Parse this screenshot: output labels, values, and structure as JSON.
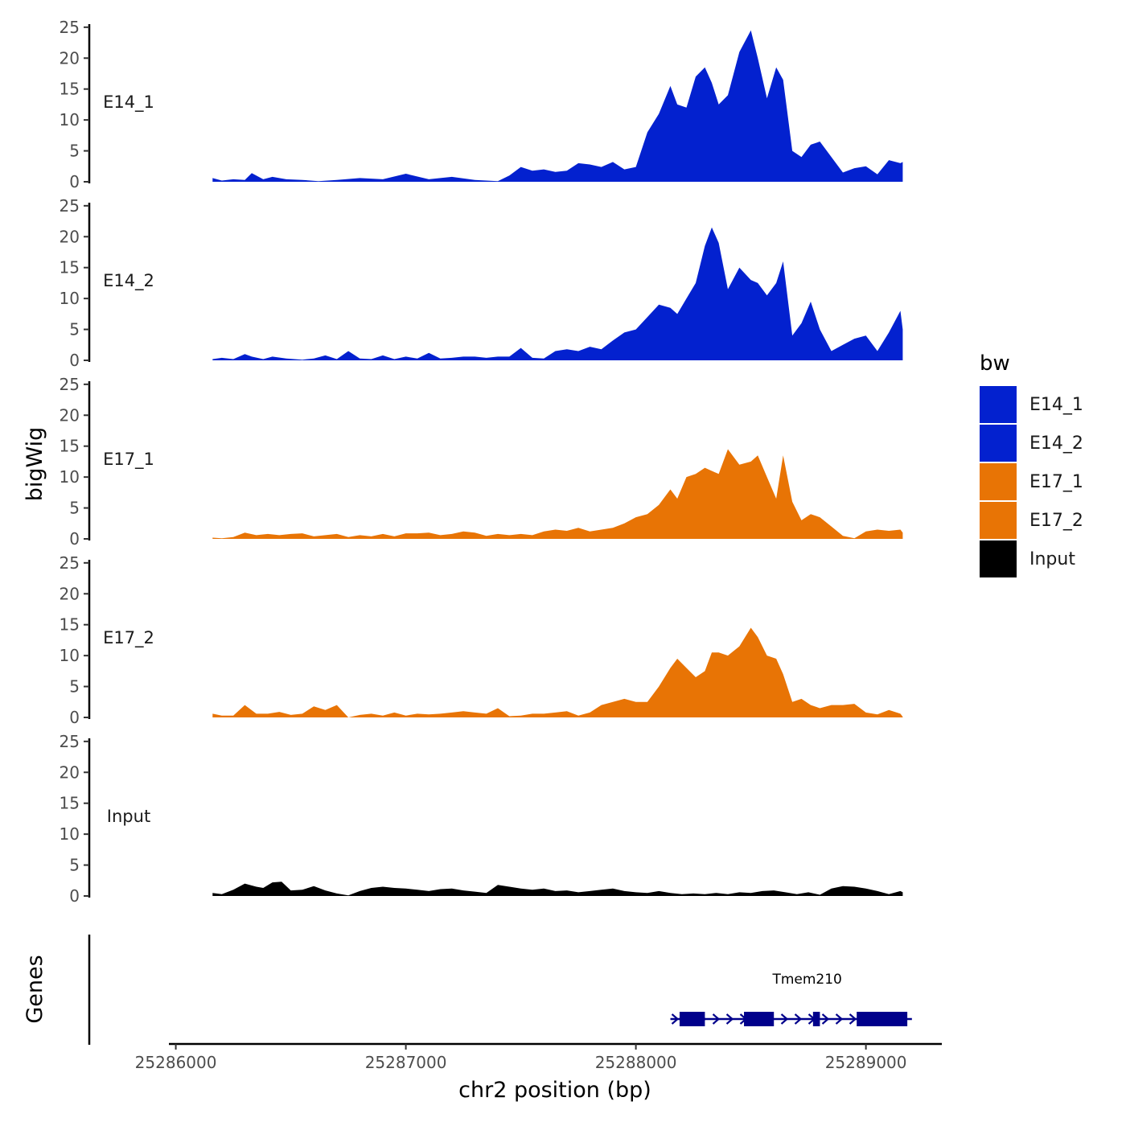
{
  "chart_data": {
    "type": "area",
    "ylabel": "bigWig",
    "genes_label": "Genes",
    "xlabel": "chr2 position (bp)",
    "xlim": [
      25285970,
      25289330
    ],
    "x_ticks": [
      25286000,
      25287000,
      25288000,
      25289000
    ],
    "x_tick_labels": [
      "25286000",
      "25287000",
      "25288000",
      "25289000"
    ],
    "ylim": [
      0,
      25.5
    ],
    "y_ticks": [
      0,
      5,
      10,
      15,
      20,
      25
    ],
    "y_tick_labels": [
      "0",
      "5",
      "10",
      "15",
      "20",
      "25"
    ],
    "legend": {
      "title": "bw",
      "position": "right",
      "items": [
        {
          "label": "E14_1",
          "color": "#0321CF"
        },
        {
          "label": "E14_2",
          "color": "#0321CF"
        },
        {
          "label": "E17_1",
          "color": "#E87405"
        },
        {
          "label": "E17_2",
          "color": "#E87405"
        },
        {
          "label": "Input",
          "color": "#000000"
        }
      ]
    },
    "series": [
      {
        "name": "E14_1",
        "color": "#0321CF",
        "x": [
          25286160,
          25286200,
          25286250,
          25286300,
          25286330,
          25286380,
          25286420,
          25286480,
          25286550,
          25286620,
          25286700,
          25286800,
          25286900,
          25287000,
          25287100,
          25287200,
          25287300,
          25287400,
          25287450,
          25287500,
          25287550,
          25287600,
          25287650,
          25287700,
          25287750,
          25287800,
          25287850,
          25287900,
          25287950,
          25288000,
          25288050,
          25288100,
          25288150,
          25288180,
          25288220,
          25288260,
          25288300,
          25288330,
          25288360,
          25288400,
          25288450,
          25288500,
          25288530,
          25288570,
          25288610,
          25288640,
          25288680,
          25288720,
          25288760,
          25288800,
          25288850,
          25288900,
          25288950,
          25289000,
          25289050,
          25289100,
          25289150,
          25289160
        ],
        "y": [
          0.6,
          0.2,
          0.4,
          0.3,
          1.4,
          0.4,
          0.8,
          0.4,
          0.3,
          0.1,
          0.3,
          0.6,
          0.4,
          1.3,
          0.4,
          0.8,
          0.3,
          0.1,
          1.0,
          2.4,
          1.8,
          2.0,
          1.6,
          1.8,
          3.0,
          2.8,
          2.4,
          3.2,
          2.0,
          2.4,
          8.0,
          11.0,
          15.5,
          12.5,
          12.0,
          17.0,
          18.5,
          16.0,
          12.5,
          14.0,
          21.0,
          24.5,
          20.0,
          13.5,
          18.5,
          16.5,
          5.0,
          4.0,
          6.0,
          6.5,
          4.0,
          1.5,
          2.2,
          2.5,
          1.2,
          3.5,
          3.0,
          3.2
        ]
      },
      {
        "name": "E14_2",
        "color": "#0321CF",
        "x": [
          25286160,
          25286200,
          25286250,
          25286300,
          25286330,
          25286380,
          25286420,
          25286480,
          25286550,
          25286600,
          25286650,
          25286700,
          25286750,
          25286800,
          25286850,
          25286900,
          25286950,
          25287000,
          25287050,
          25287100,
          25287150,
          25287200,
          25287250,
          25287300,
          25287350,
          25287400,
          25287450,
          25287500,
          25287550,
          25287600,
          25287650,
          25287700,
          25287750,
          25287800,
          25287850,
          25287900,
          25287950,
          25288000,
          25288050,
          25288100,
          25288150,
          25288180,
          25288220,
          25288260,
          25288300,
          25288330,
          25288360,
          25288400,
          25288450,
          25288500,
          25288530,
          25288570,
          25288610,
          25288640,
          25288680,
          25288720,
          25288760,
          25288800,
          25288850,
          25288900,
          25288950,
          25289000,
          25289050,
          25289100,
          25289150,
          25289160
        ],
        "y": [
          0.2,
          0.4,
          0.2,
          1.0,
          0.6,
          0.2,
          0.6,
          0.3,
          0.1,
          0.3,
          0.8,
          0.2,
          1.5,
          0.3,
          0.2,
          0.8,
          0.2,
          0.6,
          0.3,
          1.2,
          0.3,
          0.4,
          0.6,
          0.6,
          0.4,
          0.6,
          0.6,
          2.0,
          0.4,
          0.3,
          1.5,
          1.8,
          1.5,
          2.2,
          1.8,
          3.2,
          4.5,
          5.0,
          7.0,
          9.0,
          8.5,
          7.5,
          10.0,
          12.5,
          18.5,
          21.5,
          19.0,
          11.5,
          15.0,
          13.0,
          12.5,
          10.5,
          12.5,
          16.0,
          4.0,
          6.0,
          9.5,
          5.0,
          1.5,
          2.5,
          3.5,
          4.0,
          1.5,
          4.5,
          8.0,
          5.0
        ]
      },
      {
        "name": "E17_1",
        "color": "#E87405",
        "x": [
          25286160,
          25286200,
          25286250,
          25286300,
          25286350,
          25286400,
          25286450,
          25286500,
          25286550,
          25286600,
          25286650,
          25286700,
          25286750,
          25286800,
          25286850,
          25286900,
          25286950,
          25287000,
          25287050,
          25287100,
          25287150,
          25287200,
          25287250,
          25287300,
          25287350,
          25287400,
          25287450,
          25287500,
          25287550,
          25287600,
          25287650,
          25287700,
          25287750,
          25287800,
          25287850,
          25287900,
          25287950,
          25288000,
          25288050,
          25288100,
          25288150,
          25288180,
          25288220,
          25288260,
          25288300,
          25288330,
          25288360,
          25288400,
          25288450,
          25288500,
          25288530,
          25288570,
          25288610,
          25288640,
          25288680,
          25288720,
          25288760,
          25288800,
          25288850,
          25288900,
          25288950,
          25289000,
          25289050,
          25289100,
          25289150,
          25289160
        ],
        "y": [
          0.2,
          0.1,
          0.3,
          1.0,
          0.6,
          0.8,
          0.6,
          0.8,
          0.9,
          0.4,
          0.6,
          0.8,
          0.3,
          0.6,
          0.4,
          0.8,
          0.4,
          0.9,
          0.9,
          1.0,
          0.6,
          0.8,
          1.2,
          1.0,
          0.5,
          0.8,
          0.6,
          0.8,
          0.6,
          1.2,
          1.5,
          1.3,
          1.8,
          1.2,
          1.5,
          1.8,
          2.5,
          3.5,
          4.0,
          5.5,
          8.0,
          6.5,
          10.0,
          10.5,
          11.5,
          11.0,
          10.5,
          14.5,
          12.0,
          12.5,
          13.5,
          10.0,
          6.5,
          13.5,
          6.0,
          3.0,
          4.0,
          3.5,
          2.0,
          0.5,
          0.1,
          1.2,
          1.5,
          1.3,
          1.5,
          1.0
        ]
      },
      {
        "name": "E17_2",
        "color": "#E87405",
        "x": [
          25286160,
          25286200,
          25286250,
          25286300,
          25286350,
          25286400,
          25286450,
          25286500,
          25286550,
          25286600,
          25286650,
          25286700,
          25286750,
          25286800,
          25286850,
          25286900,
          25286950,
          25287000,
          25287050,
          25287100,
          25287150,
          25287200,
          25287250,
          25287300,
          25287350,
          25287400,
          25287450,
          25287500,
          25287550,
          25287600,
          25287650,
          25287700,
          25287750,
          25287800,
          25287850,
          25287900,
          25287950,
          25288000,
          25288050,
          25288100,
          25288150,
          25288180,
          25288220,
          25288260,
          25288300,
          25288330,
          25288360,
          25288400,
          25288450,
          25288500,
          25288530,
          25288570,
          25288610,
          25288640,
          25288680,
          25288720,
          25288760,
          25288800,
          25288850,
          25288900,
          25288950,
          25289000,
          25289050,
          25289100,
          25289150,
          25289160
        ],
        "y": [
          0.6,
          0.3,
          0.3,
          2.0,
          0.6,
          0.6,
          0.9,
          0.4,
          0.6,
          1.8,
          1.2,
          2.0,
          0.0,
          0.4,
          0.6,
          0.3,
          0.8,
          0.3,
          0.6,
          0.5,
          0.6,
          0.8,
          1.0,
          0.8,
          0.6,
          1.5,
          0.2,
          0.3,
          0.6,
          0.6,
          0.8,
          1.0,
          0.3,
          0.8,
          2.0,
          2.5,
          3.0,
          2.5,
          2.5,
          5.0,
          8.0,
          9.5,
          8.0,
          6.5,
          7.5,
          10.5,
          10.5,
          10.0,
          11.5,
          14.5,
          13.0,
          10.0,
          9.5,
          7.0,
          2.5,
          3.0,
          2.0,
          1.5,
          2.0,
          2.0,
          2.2,
          0.8,
          0.5,
          1.2,
          0.6,
          0.1
        ]
      },
      {
        "name": "Input",
        "color": "#000000",
        "x": [
          25286160,
          25286200,
          25286250,
          25286300,
          25286350,
          25286380,
          25286420,
          25286460,
          25286500,
          25286550,
          25286600,
          25286650,
          25286700,
          25286750,
          25286800,
          25286850,
          25286900,
          25286950,
          25287000,
          25287050,
          25287100,
          25287150,
          25287200,
          25287250,
          25287300,
          25287350,
          25287400,
          25287450,
          25287500,
          25287550,
          25287600,
          25287650,
          25287700,
          25287750,
          25287800,
          25287850,
          25287900,
          25287950,
          25288000,
          25288050,
          25288100,
          25288150,
          25288200,
          25288250,
          25288300,
          25288350,
          25288400,
          25288450,
          25288500,
          25288550,
          25288600,
          25288650,
          25288700,
          25288750,
          25288800,
          25288850,
          25288900,
          25288950,
          25289000,
          25289050,
          25289100,
          25289150,
          25289160
        ],
        "y": [
          0.5,
          0.3,
          1.0,
          2.0,
          1.5,
          1.3,
          2.2,
          2.3,
          0.9,
          1.0,
          1.6,
          0.9,
          0.4,
          0.1,
          0.8,
          1.3,
          1.5,
          1.3,
          1.2,
          1.0,
          0.8,
          1.1,
          1.2,
          0.9,
          0.7,
          0.5,
          1.8,
          1.5,
          1.2,
          1.0,
          1.2,
          0.8,
          0.9,
          0.6,
          0.8,
          1.0,
          1.2,
          0.8,
          0.6,
          0.5,
          0.8,
          0.5,
          0.3,
          0.4,
          0.3,
          0.5,
          0.3,
          0.6,
          0.5,
          0.8,
          0.9,
          0.6,
          0.3,
          0.6,
          0.2,
          1.2,
          1.6,
          1.5,
          1.2,
          0.8,
          0.3,
          0.8,
          0.6
        ]
      }
    ],
    "gene": {
      "name": "Tmem210",
      "color": "#00008B",
      "strand": "+",
      "start": 25288150,
      "end": 25289200,
      "exons": [
        [
          25288190,
          25288300
        ],
        [
          25288470,
          25288600
        ],
        [
          25288770,
          25288800
        ],
        [
          25288960,
          25289180
        ]
      ]
    }
  }
}
